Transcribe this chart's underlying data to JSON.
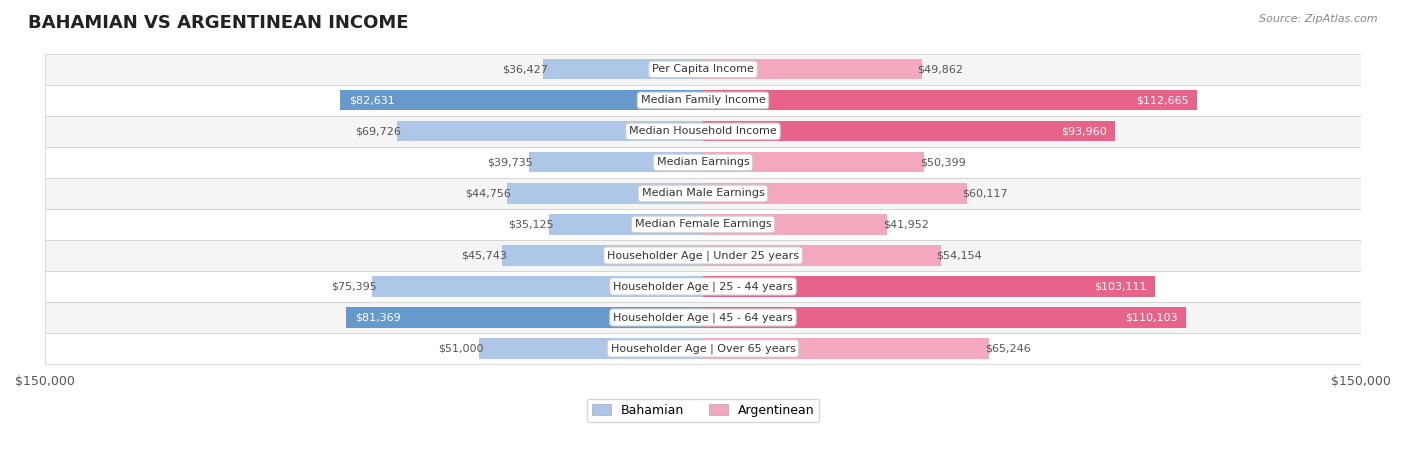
{
  "title": "BAHAMIAN VS ARGENTINEAN INCOME",
  "source": "Source: ZipAtlas.com",
  "categories": [
    "Per Capita Income",
    "Median Family Income",
    "Median Household Income",
    "Median Earnings",
    "Median Male Earnings",
    "Median Female Earnings",
    "Householder Age | Under 25 years",
    "Householder Age | 25 - 44 years",
    "Householder Age | 45 - 64 years",
    "Householder Age | Over 65 years"
  ],
  "bahamian_values": [
    36427,
    82631,
    69726,
    39735,
    44756,
    35125,
    45743,
    75395,
    81369,
    51000
  ],
  "argentinean_values": [
    49862,
    112665,
    93960,
    50399,
    60117,
    41952,
    54154,
    103111,
    110103,
    65246
  ],
  "bahamian_labels": [
    "$36,427",
    "$82,631",
    "$69,726",
    "$39,735",
    "$44,756",
    "$35,125",
    "$45,743",
    "$75,395",
    "$81,369",
    "$51,000"
  ],
  "argentinean_labels": [
    "$49,862",
    "$112,665",
    "$93,960",
    "$50,399",
    "$60,117",
    "$41,952",
    "$54,154",
    "$103,111",
    "$110,103",
    "$65,246"
  ],
  "max_value": 150000,
  "color_bahamian_light": "#aec6e8",
  "color_bahamian_dark": "#6699cc",
  "color_argentinean_light": "#f4a8be",
  "color_argentinean_dark": "#e8638a",
  "threshold_dark": 80000,
  "row_bg_light": "#f5f5f5",
  "row_bg_white": "#ffffff",
  "label_color_dark": "#ffffff",
  "label_color_normal": "#555555",
  "center_label_bg": "#ffffff",
  "center_label_border": "#cccccc"
}
